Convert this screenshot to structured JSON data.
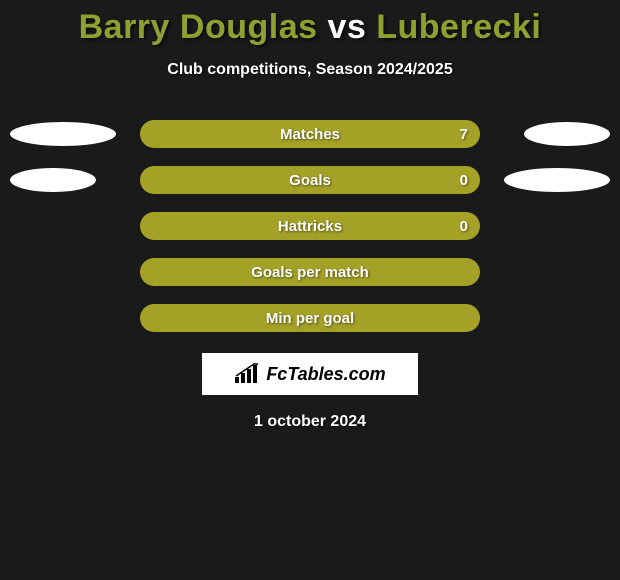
{
  "title": {
    "player1": "Barry Douglas",
    "vs": "vs",
    "player2": "Luberecki",
    "player1_color": "#8fa030",
    "vs_color": "#ffffff",
    "player2_color": "#8fa030"
  },
  "subtitle": "Club competitions, Season 2024/2025",
  "bar_color": "#a4a127",
  "ellipse_colors": {
    "left": "#ffffff",
    "right": "#ffffff"
  },
  "background_color": "#1a1a1a",
  "rows": [
    {
      "label": "Matches",
      "value": "7",
      "show_value": true,
      "show_ellipses": true,
      "ellipse_left_w": 106,
      "ellipse_right_w": 86
    },
    {
      "label": "Goals",
      "value": "0",
      "show_value": true,
      "show_ellipses": true,
      "ellipse_left_w": 86,
      "ellipse_right_w": 106
    },
    {
      "label": "Hattricks",
      "value": "0",
      "show_value": true,
      "show_ellipses": false
    },
    {
      "label": "Goals per match",
      "value": "",
      "show_value": false,
      "show_ellipses": false
    },
    {
      "label": "Min per goal",
      "value": "",
      "show_value": false,
      "show_ellipses": false
    }
  ],
  "logo_text": "FcTables.com",
  "date": "1 october 2024"
}
